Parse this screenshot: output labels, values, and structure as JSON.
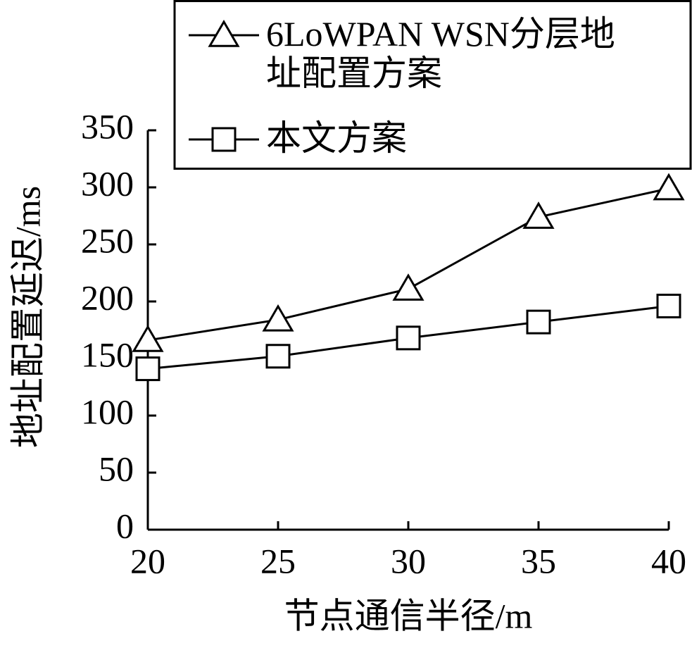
{
  "chart_data": {
    "type": "line",
    "x_label": "节点通信半径/m",
    "y_label": "地址配置延迟/ms",
    "x": [
      20,
      25,
      30,
      35,
      40
    ],
    "series": [
      {
        "name": "6LoWPAN WSN分层地址配置方案",
        "color": "#000000",
        "marker": "triangle",
        "values": [
          166,
          184,
          211,
          274,
          299
        ]
      },
      {
        "name": "本文方案",
        "color": "#000000",
        "marker": "square",
        "values": [
          141,
          152,
          168,
          182,
          196
        ]
      }
    ],
    "xlim": [
      20,
      40
    ],
    "xticks": [
      20,
      25,
      30,
      35,
      40
    ],
    "ylim": [
      0,
      350
    ],
    "yticks": [
      0,
      50,
      100,
      150,
      200,
      250,
      300,
      350
    ],
    "grid": false,
    "legend": "top right"
  }
}
